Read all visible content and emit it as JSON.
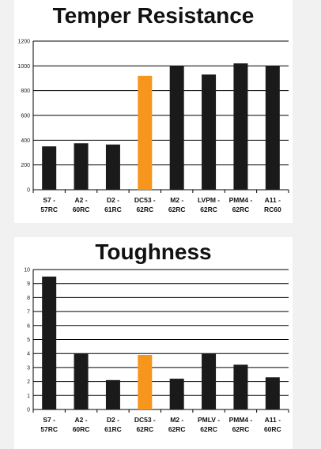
{
  "colors": {
    "bar": "#1a1a1a",
    "highlight": "#f7961d",
    "grid": "#000000"
  },
  "chart_data": [
    {
      "type": "bar",
      "title": "Temper Resistance",
      "categories": [
        [
          "S7 -",
          "57RC"
        ],
        [
          "A2 -",
          "60RC"
        ],
        [
          "D2 -",
          "61RC"
        ],
        [
          "DC53 -",
          "62RC"
        ],
        [
          "M2 -",
          "62RC"
        ],
        [
          "LVPM -",
          "62RC"
        ],
        [
          "PMM4 -",
          "62RC"
        ],
        [
          "A11 -",
          "RC60"
        ]
      ],
      "values": [
        350,
        375,
        365,
        920,
        1000,
        930,
        1020,
        1000
      ],
      "highlight_index": 3,
      "ylim": [
        0,
        1200
      ],
      "yticks": [
        "0",
        "200",
        "400",
        "600",
        "800",
        "1000",
        "1200"
      ],
      "grid": true
    },
    {
      "type": "bar",
      "title": "Toughness",
      "categories": [
        [
          "S7 -",
          "57RC"
        ],
        [
          "A2 -",
          "60RC"
        ],
        [
          "D2 -",
          "61RC"
        ],
        [
          "DC53 -",
          "62RC"
        ],
        [
          "M2 -",
          "62RC"
        ],
        [
          "PMLV -",
          "62RC"
        ],
        [
          "PMM4 -",
          "62RC"
        ],
        [
          "A11 -",
          "60RC"
        ]
      ],
      "values": [
        9.5,
        4.0,
        2.1,
        3.9,
        2.2,
        4.0,
        3.2,
        2.3
      ],
      "highlight_index": 3,
      "ylim": [
        0,
        10
      ],
      "yticks": [
        "0",
        "1",
        "2",
        "3",
        "4",
        "5",
        "6",
        "7",
        "8",
        "9",
        "10"
      ],
      "grid": true
    }
  ]
}
